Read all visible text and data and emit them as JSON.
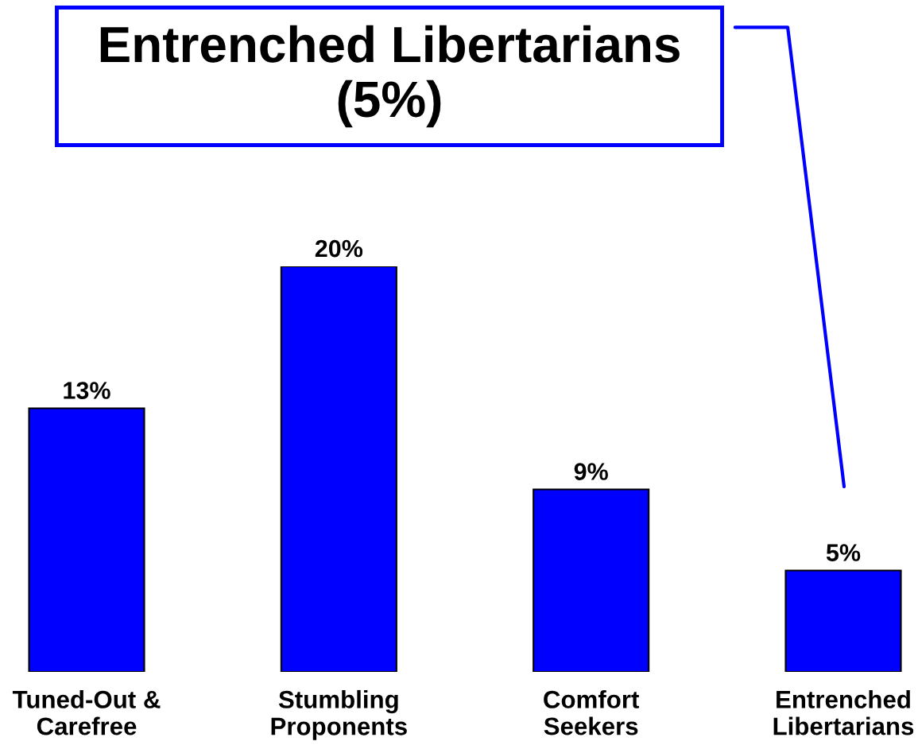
{
  "chart_data": {
    "type": "bar",
    "categories": [
      "Tuned-Out &\nCarefree",
      "Stumbling\nProponents",
      "Comfort\nSeekers",
      "Entrenched\nLibertarians"
    ],
    "values": [
      13,
      20,
      9,
      5
    ],
    "color": "#0000ff",
    "value_labels": [
      "13%",
      "20%",
      "9%",
      "5%"
    ],
    "tick_labels": "x",
    "annotations": [
      "Entrenched Libertarians\n(5%)"
    ]
  }
}
